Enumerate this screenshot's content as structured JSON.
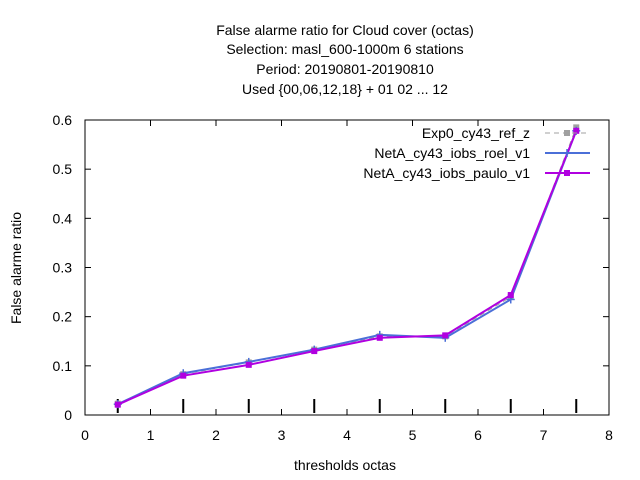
{
  "chart_data": {
    "type": "line",
    "title_lines": [
      "False alarme ratio  for Cloud cover (octas)",
      "Selection: masl_600-1000m      6 stations",
      "Period: 20190801-20190810",
      "Used {00,06,12,18} + 01 02 ... 12"
    ],
    "xlabel": "thresholds octas",
    "ylabel": "False alarme ratio",
    "xlim": [
      0,
      8
    ],
    "ylim": [
      0,
      0.6
    ],
    "xticks": [
      "0",
      "1",
      "2",
      "3",
      "4",
      "5",
      "6",
      "7",
      "8"
    ],
    "yticks": [
      "0",
      "0.1",
      "0.2",
      "0.3",
      "0.4",
      "0.5",
      "0.6"
    ],
    "grid": false,
    "legend_position": "top-right",
    "x": [
      0.5,
      1.5,
      2.5,
      3.5,
      4.5,
      5.5,
      6.5,
      7.5
    ],
    "series": [
      {
        "name": "Exp0_cy43_ref_z",
        "color": "#a0a0a0",
        "dash": true,
        "values": [
          0.023,
          0.083,
          0.107,
          0.133,
          0.16,
          0.16,
          0.24,
          0.585
        ]
      },
      {
        "name": "NetA_cy43_iobs_roel_v1",
        "color": "#4b6fd8",
        "dash": false,
        "values": [
          0.022,
          0.085,
          0.108,
          0.133,
          0.163,
          0.157,
          0.235,
          0.578
        ]
      },
      {
        "name": "NetA_cy43_iobs_paulo_v1",
        "color": "#b000e0",
        "dash": false,
        "values": [
          0.021,
          0.08,
          0.102,
          0.13,
          0.157,
          0.162,
          0.244,
          0.578
        ]
      }
    ]
  }
}
